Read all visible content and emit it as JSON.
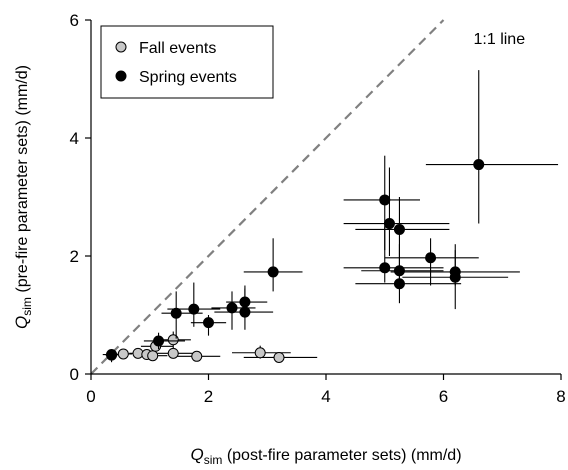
{
  "chart_data": {
    "type": "scatter",
    "xlabel": {
      "sym": "Q",
      "sub": "sim",
      "rest": " (post-fire parameter sets) (mm/d)"
    },
    "ylabel": {
      "sym": "Q",
      "sub": "sim",
      "rest": " (pre-fire parameter sets) (mm/d)"
    },
    "xlim": [
      0,
      8
    ],
    "ylim": [
      0,
      6
    ],
    "xticks": [
      0,
      2,
      4,
      6,
      8
    ],
    "yticks": [
      0,
      2,
      4,
      6
    ],
    "grid": false,
    "legend_position": "top-left",
    "reference_line": {
      "label": "1:1 line",
      "slope": 1,
      "color": "#808080"
    },
    "series": [
      {
        "name": "Fall events",
        "color": "#c8c8c8",
        "points": [
          {
            "x": 0.35,
            "y": 0.33,
            "xerr": [
              0.2,
              0.6
            ],
            "yerr": [
              0.28,
              0.38
            ]
          },
          {
            "x": 0.55,
            "y": 0.34,
            "xerr": [
              0.45,
              0.7
            ],
            "yerr": [
              0.28,
              0.4
            ]
          },
          {
            "x": 0.8,
            "y": 0.35,
            "xerr": [
              0.65,
              0.95
            ],
            "yerr": [
              0.3,
              0.4
            ]
          },
          {
            "x": 0.95,
            "y": 0.33,
            "xerr": [
              0.8,
              1.1
            ],
            "yerr": [
              0.28,
              0.38
            ]
          },
          {
            "x": 1.05,
            "y": 0.31,
            "xerr": [
              0.85,
              1.3
            ],
            "yerr": [
              0.27,
              0.36
            ]
          },
          {
            "x": 1.1,
            "y": 0.47,
            "xerr": [
              0.85,
              1.4
            ],
            "yerr": [
              0.4,
              0.55
            ]
          },
          {
            "x": 1.4,
            "y": 0.35,
            "xerr": [
              1.1,
              1.75
            ],
            "yerr": [
              0.28,
              0.43
            ]
          },
          {
            "x": 1.4,
            "y": 0.58,
            "xerr": [
              1.15,
              1.7
            ],
            "yerr": [
              0.43,
              0.72
            ]
          },
          {
            "x": 1.8,
            "y": 0.3,
            "xerr": [
              1.4,
              2.2
            ],
            "yerr": [
              0.25,
              0.36
            ]
          },
          {
            "x": 2.88,
            "y": 0.36,
            "xerr": [
              2.4,
              3.4
            ],
            "yerr": [
              0.26,
              0.48
            ]
          },
          {
            "x": 3.2,
            "y": 0.28,
            "xerr": [
              2.6,
              3.85
            ],
            "yerr": [
              0.23,
              0.34
            ]
          }
        ]
      },
      {
        "name": "Spring events",
        "color": "#000000",
        "points": [
          {
            "x": 0.35,
            "y": 0.32,
            "xerr": [
              0.25,
              0.45
            ],
            "yerr": [
              0.2,
              0.42
            ]
          },
          {
            "x": 1.15,
            "y": 0.56,
            "xerr": [
              0.9,
              1.6
            ],
            "yerr": [
              0.42,
              0.7
            ]
          },
          {
            "x": 1.45,
            "y": 1.03,
            "xerr": [
              1.2,
              1.9
            ],
            "yerr": [
              0.6,
              1.4
            ]
          },
          {
            "x": 1.75,
            "y": 1.1,
            "xerr": [
              1.3,
              2.2
            ],
            "yerr": [
              0.8,
              1.55
            ]
          },
          {
            "x": 2.0,
            "y": 0.87,
            "xerr": [
              1.7,
              2.3
            ],
            "yerr": [
              0.65,
              1.0
            ]
          },
          {
            "x": 2.4,
            "y": 1.12,
            "xerr": [
              2.05,
              2.8
            ],
            "yerr": [
              0.75,
              1.4
            ]
          },
          {
            "x": 2.62,
            "y": 1.05,
            "xerr": [
              2.1,
              3.1
            ],
            "yerr": [
              0.75,
              1.45
            ]
          },
          {
            "x": 2.62,
            "y": 1.22,
            "xerr": [
              2.3,
              3.0
            ],
            "yerr": [
              0.95,
              1.5
            ]
          },
          {
            "x": 3.1,
            "y": 1.73,
            "xerr": [
              2.6,
              3.6
            ],
            "yerr": [
              1.4,
              2.3
            ]
          },
          {
            "x": 5.0,
            "y": 2.95,
            "xerr": [
              4.3,
              5.6
            ],
            "yerr": [
              2.1,
              3.7
            ]
          },
          {
            "x": 5.08,
            "y": 2.55,
            "xerr": [
              4.3,
              6.1
            ],
            "yerr": [
              2.0,
              3.5
            ]
          },
          {
            "x": 5.25,
            "y": 2.45,
            "xerr": [
              4.5,
              6.1
            ],
            "yerr": [
              1.8,
              3.0
            ]
          },
          {
            "x": 5.0,
            "y": 1.8,
            "xerr": [
              4.3,
              6.0
            ],
            "yerr": [
              1.55,
              2.5
            ]
          },
          {
            "x": 5.25,
            "y": 1.75,
            "xerr": [
              4.6,
              6.0
            ],
            "yerr": [
              1.45,
              2.2
            ]
          },
          {
            "x": 5.25,
            "y": 1.53,
            "xerr": [
              4.5,
              6.3
            ],
            "yerr": [
              1.2,
              1.75
            ]
          },
          {
            "x": 5.78,
            "y": 1.97,
            "xerr": [
              5.0,
              6.6
            ],
            "yerr": [
              1.5,
              2.3
            ]
          },
          {
            "x": 6.2,
            "y": 1.73,
            "xerr": [
              5.1,
              7.3
            ],
            "yerr": [
              1.5,
              2.1
            ]
          },
          {
            "x": 6.2,
            "y": 1.64,
            "xerr": [
              5.3,
              7.1
            ],
            "yerr": [
              1.1,
              2.2
            ]
          },
          {
            "x": 6.6,
            "y": 3.55,
            "xerr": [
              5.7,
              7.95
            ],
            "yerr": [
              2.55,
              5.15
            ]
          }
        ]
      }
    ]
  }
}
